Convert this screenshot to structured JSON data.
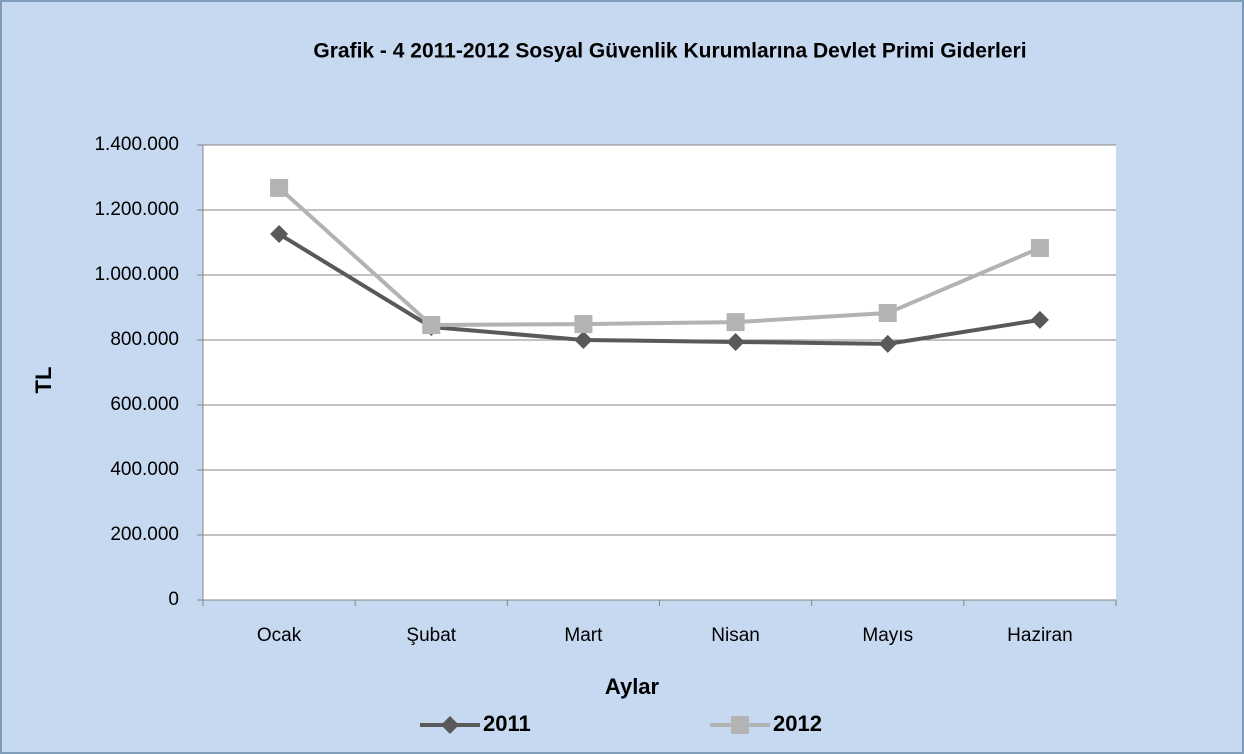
{
  "chart_data": {
    "type": "line",
    "title": "Grafik - 4   2011-2012  Sosyal Güvenlik Kurumlarına Devlet Primi Giderleri",
    "xlabel": "Aylar",
    "ylabel": "TL",
    "categories": [
      "Ocak",
      "Şubat",
      "Mart",
      "Nisan",
      "Mayıs",
      "Haziran"
    ],
    "series": [
      {
        "name": "2011",
        "color": "#595959",
        "marker": "diamond",
        "values": [
          1126000,
          840000,
          800000,
          794000,
          788000,
          862000
        ]
      },
      {
        "name": "2012",
        "color": "#b3b3b3",
        "marker": "square",
        "values": [
          1268000,
          846000,
          849000,
          855000,
          883000,
          1083000
        ]
      }
    ],
    "ylim": [
      0,
      1400000
    ],
    "yticks": [
      0,
      {
        "value": 200000,
        "label": "200.000"
      },
      {
        "value": 400000,
        "label": "400.000"
      },
      {
        "value": 600000,
        "label": "600.000"
      },
      {
        "value": 800000,
        "label": "800.000"
      },
      {
        "value": 1000000,
        "label": "1.000.000"
      },
      {
        "value": 1200000,
        "label": "1.200.000"
      },
      {
        "value": 1400000,
        "label": "1.400.000"
      }
    ],
    "grid": true,
    "legend": "bottom"
  }
}
